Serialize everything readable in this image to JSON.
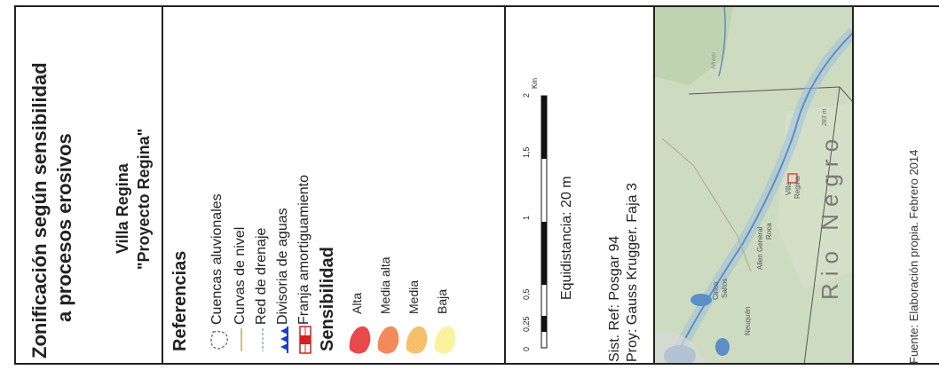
{
  "title_panel": {
    "title_line1": "Zonificación según sensibilidad",
    "title_line2": "a procesos erosivos",
    "place_line1": "Villa Regina",
    "place_line2": "\"Proyecto Regina\""
  },
  "legend": {
    "heading": "Referencias",
    "items": [
      {
        "label": "Cuencas aluvionales",
        "symbol": "dashed-outline-icon"
      },
      {
        "label": "Curvas de nivel",
        "symbol": "tan-line-icon"
      },
      {
        "label": "Red de drenaje",
        "symbol": "dashed-blue-line-icon"
      },
      {
        "label": "Divisoria de aguas",
        "symbol": "blue-triangles-line-icon"
      },
      {
        "label": "Franja amortiguamiento",
        "symbol": "red-buffer-line-icon"
      }
    ],
    "sensitivity_heading": "Sensibilidad",
    "sensitivity": [
      {
        "label": "Alta",
        "color": "#e8494b"
      },
      {
        "label": "Media alta",
        "color": "#f28a5c"
      },
      {
        "label": "Media",
        "color": "#f6c06a"
      },
      {
        "label": "Baja",
        "color": "#fbf2a0"
      }
    ]
  },
  "scale": {
    "ticks": [
      "0",
      "0,25",
      "0,5",
      "1",
      "1,5",
      "2"
    ],
    "unit": "Km",
    "equidistance": "Equidistancia: 20 m",
    "ref_line1": "Sist. Ref: Posgar 94",
    "ref_line2": "Proy: Gauss Krugger. Faja 3"
  },
  "map": {
    "labels": {
      "province": "Rio Negro",
      "villa_regina_1": "Villa",
      "villa_regina_2": "Regina",
      "general_roca_1": "Allen General",
      "general_roca_2": "Roca",
      "cinco_saltos_1": "Cinco",
      "cinco_saltos_2": "Saltos",
      "neuquen": "Neuquén",
      "elevation": "283 m",
      "road": "Alfredo"
    },
    "colors": {
      "land": "#cddcc0",
      "river": "#8fb3cf",
      "water": "#5a8fc8",
      "highlight": "#e0202a"
    }
  },
  "footer": {
    "source": "Fuente: Elaboración propia. Febrero 2014"
  }
}
